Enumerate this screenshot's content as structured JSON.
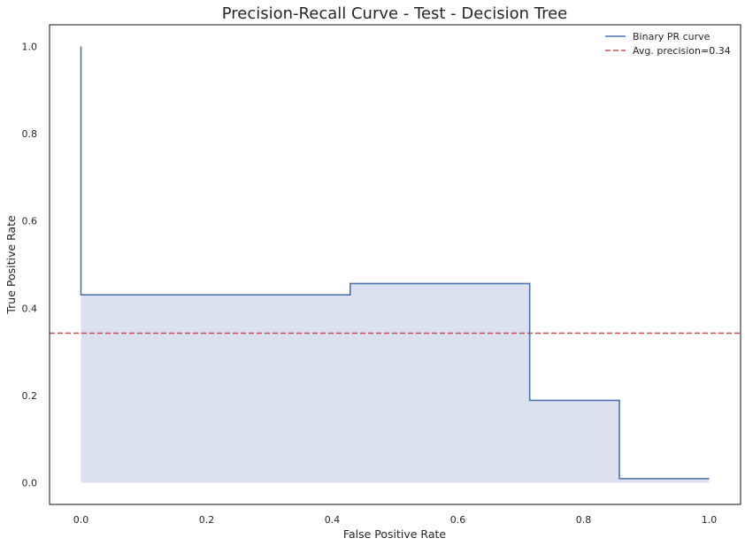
{
  "chart_data": {
    "type": "line",
    "title": "Precision-Recall Curve - Test - Decision Tree",
    "xlabel": "False Positive Rate",
    "ylabel": "True Positive Rate",
    "xlim": [
      -0.05,
      1.05
    ],
    "ylim": [
      -0.05,
      1.05
    ],
    "xticks": [
      "0.0",
      "0.2",
      "0.4",
      "0.6",
      "0.8",
      "1.0"
    ],
    "yticks": [
      "0.0",
      "0.2",
      "0.4",
      "0.6",
      "0.8",
      "1.0"
    ],
    "grid": false,
    "legend_position": "top-right",
    "series": [
      {
        "name": "Binary PR curve",
        "color": "#4c72b0",
        "style": "step-post",
        "fill": true,
        "fill_color": "#dbe1ef",
        "x": [
          0.0,
          0.0,
          0.4286,
          0.7143,
          0.8571,
          1.0
        ],
        "y": [
          1.0,
          0.4307,
          0.4565,
          0.1887,
          0.0091,
          0.0091
        ]
      },
      {
        "name": "Avg. precision=0.34",
        "color": "#c44e52",
        "style": "dashed-horizontal",
        "y": 0.3427
      }
    ]
  }
}
